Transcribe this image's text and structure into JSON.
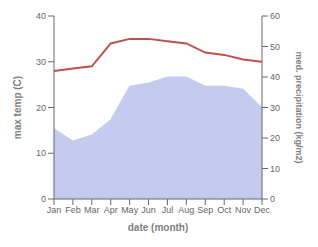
{
  "chart_data": {
    "type": "line",
    "categories": [
      "Jan",
      "Feb",
      "Mar",
      "Apr",
      "May",
      "Jun",
      "Jul",
      "Aug",
      "Sep",
      "Oct",
      "Nov",
      "Dec"
    ],
    "xlabel": "date (month)",
    "ylabel": "max temp (C)",
    "y2label": "med. precipitation (kg/m2)",
    "ylim": [
      0,
      40
    ],
    "yticks": [
      0,
      10,
      20,
      30,
      40
    ],
    "y2lim": [
      0,
      60
    ],
    "y2ticks": [
      0,
      10,
      20,
      30,
      40,
      50,
      60
    ],
    "grid": false,
    "series": [
      {
        "type": "area",
        "axis": "y2",
        "color": "#c5cbee",
        "values": [
          23,
          19,
          21,
          26,
          37,
          38,
          40,
          40,
          37,
          37,
          36,
          30
        ]
      },
      {
        "type": "line",
        "color": "#c0504d",
        "values": [
          28,
          28.5,
          29,
          34,
          35,
          35,
          34.5,
          34,
          32,
          31.5,
          30.5,
          30
        ]
      }
    ]
  }
}
